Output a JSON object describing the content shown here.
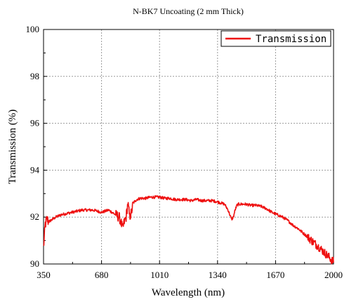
{
  "chart_data": {
    "type": "line",
    "title": "N-BK7 Uncoating (2 mm  Thick)",
    "xlabel": "Wavelength (nm)",
    "ylabel": "Transmission (%)",
    "xlim": [
      350,
      2000
    ],
    "ylim": [
      90,
      100
    ],
    "xticks": [
      350,
      680,
      1010,
      1340,
      1670,
      2000
    ],
    "xtick_labels": [
      "350",
      "680",
      "1010",
      "1340",
      "1670",
      "2000"
    ],
    "yticks": [
      90,
      92,
      94,
      96,
      98,
      100
    ],
    "ytick_labels": [
      "90",
      "92",
      "94",
      "96",
      "98",
      "100"
    ],
    "grid": true,
    "legend": {
      "position": "top-right",
      "entries": [
        "Transmission"
      ]
    },
    "series": [
      {
        "name": "Transmission",
        "color": "#ee1111",
        "x": [
          350,
          355,
          360,
          370,
          380,
          400,
          420,
          450,
          480,
          510,
          540,
          570,
          600,
          630,
          660,
          680,
          700,
          720,
          740,
          760,
          780,
          790,
          800,
          810,
          820,
          830,
          840,
          850,
          860,
          880,
          900,
          930,
          960,
          990,
          1010,
          1040,
          1070,
          1100,
          1130,
          1160,
          1190,
          1220,
          1250,
          1280,
          1310,
          1340,
          1360,
          1380,
          1400,
          1410,
          1420,
          1430,
          1440,
          1450,
          1460,
          1480,
          1500,
          1530,
          1560,
          1590,
          1620,
          1650,
          1680,
          1710,
          1740,
          1770,
          1800,
          1830,
          1860,
          1890,
          1920,
          1940,
          1960,
          1980,
          1990,
          2000
        ],
        "y": [
          90.7,
          91.2,
          91.7,
          91.9,
          91.8,
          91.9,
          92.0,
          92.1,
          92.15,
          92.2,
          92.25,
          92.3,
          92.3,
          92.3,
          92.25,
          92.2,
          92.25,
          92.3,
          92.2,
          92.1,
          92.0,
          91.8,
          91.5,
          91.8,
          92.0,
          92.6,
          92.0,
          92.2,
          92.6,
          92.75,
          92.8,
          92.8,
          92.85,
          92.85,
          92.85,
          92.8,
          92.8,
          92.75,
          92.75,
          92.75,
          92.7,
          92.75,
          92.7,
          92.7,
          92.7,
          92.65,
          92.6,
          92.55,
          92.3,
          92.1,
          91.9,
          92.0,
          92.3,
          92.5,
          92.55,
          92.55,
          92.55,
          92.5,
          92.5,
          92.45,
          92.35,
          92.2,
          92.1,
          92.0,
          91.85,
          91.65,
          91.5,
          91.3,
          91.1,
          90.9,
          90.7,
          90.55,
          90.4,
          90.25,
          90.15,
          90.1
        ]
      }
    ]
  }
}
